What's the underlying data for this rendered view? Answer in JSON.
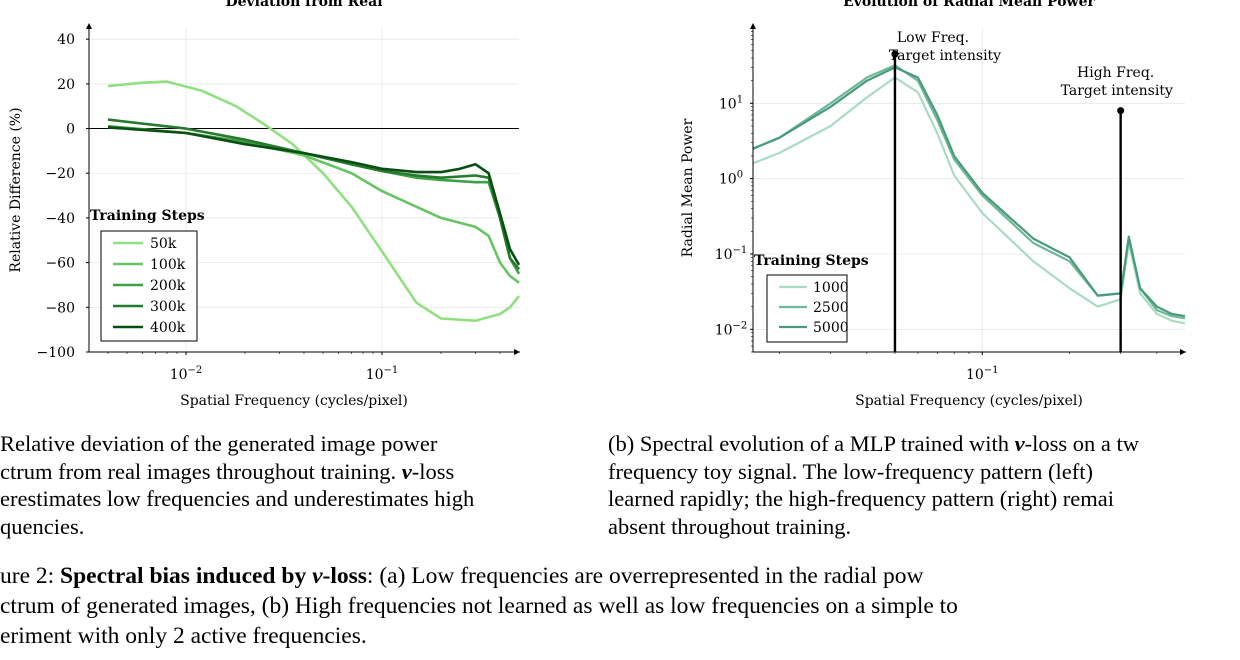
{
  "chart_data": [
    {
      "type": "line",
      "title": "Deviation from Real",
      "xlabel": "Spatial Frequency (cycles/pixel)",
      "ylabel": "Relative Difference (%)",
      "x_scale": "log",
      "xlim": [
        0.0032,
        0.5
      ],
      "ylim": [
        -100,
        45
      ],
      "x_ticks": [
        "10−2",
        "10−1"
      ],
      "y_ticks": [
        "40",
        "20",
        "0",
        "−20",
        "−40",
        "−60",
        "−80",
        "−100"
      ],
      "grid": true,
      "legend": {
        "title": "Training Steps",
        "placement": "lower-left"
      },
      "series": [
        {
          "name": "50k",
          "color": "#90e080",
          "x": [
            0.004,
            0.006,
            0.008,
            0.012,
            0.018,
            0.025,
            0.035,
            0.05,
            0.07,
            0.1,
            0.15,
            0.2,
            0.3,
            0.4,
            0.45,
            0.5
          ],
          "y": [
            19,
            20.5,
            21,
            17,
            10,
            2,
            -7,
            -20,
            -35,
            -55,
            -78,
            -85,
            -86,
            -83,
            -80,
            -75
          ]
        },
        {
          "name": "100k",
          "color": "#66c463",
          "x": [
            0.004,
            0.01,
            0.02,
            0.04,
            0.07,
            0.1,
            0.15,
            0.2,
            0.3,
            0.35,
            0.4,
            0.45,
            0.5
          ],
          "y": [
            1,
            -2,
            -6,
            -12,
            -20,
            -28,
            -35,
            -40,
            -44,
            -48,
            -60,
            -66,
            -69
          ]
        },
        {
          "name": "200k",
          "color": "#3fa046",
          "x": [
            0.004,
            0.01,
            0.02,
            0.04,
            0.07,
            0.1,
            0.15,
            0.2,
            0.3,
            0.35,
            0.4,
            0.45,
            0.5
          ],
          "y": [
            1,
            -2,
            -6,
            -11,
            -16,
            -19,
            -22,
            -23,
            -24,
            -24,
            -40,
            -58,
            -65
          ]
        },
        {
          "name": "300k",
          "color": "#267a2e",
          "x": [
            0.004,
            0.01,
            0.02,
            0.04,
            0.07,
            0.1,
            0.15,
            0.2,
            0.3,
            0.35,
            0.4,
            0.45,
            0.5
          ],
          "y": [
            4,
            0,
            -5,
            -11,
            -16,
            -19,
            -21,
            -22,
            -21,
            -22,
            -40,
            -58,
            -63
          ]
        },
        {
          "name": "400k",
          "color": "#0a4f12",
          "x": [
            0.004,
            0.01,
            0.02,
            0.04,
            0.07,
            0.1,
            0.15,
            0.2,
            0.25,
            0.3,
            0.35,
            0.4,
            0.45,
            0.5
          ],
          "y": [
            0.5,
            -2,
            -7,
            -11,
            -15,
            -18,
            -19.5,
            -19.5,
            -18,
            -16,
            -20,
            -38,
            -54,
            -61
          ]
        }
      ]
    },
    {
      "type": "line",
      "title": "Evolution of Radial Mean Power",
      "xlabel": "Spatial Frequency (cycles/pixel)",
      "ylabel": "Radial Mean Power",
      "x_scale": "log",
      "y_scale": "log",
      "xlim": [
        0.0162,
        0.5
      ],
      "ylim": [
        0.005,
        100
      ],
      "x_ticks": [
        "10−1"
      ],
      "y_ticks": [
        "10^1",
        "10^0",
        "10^−1",
        "10^−2"
      ],
      "grid": true,
      "legend": {
        "title": "Training Steps",
        "placement": "lower-left"
      },
      "annotations": [
        {
          "label_lines": [
            "Low Freq.",
            "Target intensity"
          ],
          "x": 0.05,
          "y": 45
        },
        {
          "label_lines": [
            "High Freq.",
            "Target intensity"
          ],
          "x": 0.3,
          "y": 8
        }
      ],
      "series": [
        {
          "name": "1000",
          "color": "#a8dcc2",
          "x": [
            0.0162,
            0.02,
            0.03,
            0.04,
            0.05,
            0.06,
            0.07,
            0.08,
            0.1,
            0.15,
            0.2,
            0.25,
            0.3,
            0.32,
            0.35,
            0.4,
            0.45,
            0.5
          ],
          "y": [
            1.6,
            2.2,
            5,
            12,
            22,
            14,
            4,
            1.1,
            0.35,
            0.08,
            0.035,
            0.02,
            0.025,
            0.14,
            0.03,
            0.016,
            0.013,
            0.012
          ]
        },
        {
          "name": "2500",
          "color": "#6db896",
          "x": [
            0.0162,
            0.02,
            0.03,
            0.04,
            0.05,
            0.06,
            0.07,
            0.08,
            0.1,
            0.15,
            0.2,
            0.25,
            0.3,
            0.32,
            0.35,
            0.4,
            0.45,
            0.5
          ],
          "y": [
            2.5,
            3.5,
            10,
            22,
            32,
            20,
            6,
            1.8,
            0.6,
            0.14,
            0.08,
            0.028,
            0.03,
            0.16,
            0.035,
            0.018,
            0.015,
            0.014
          ]
        },
        {
          "name": "5000",
          "color": "#4a9b7b",
          "x": [
            0.0162,
            0.02,
            0.03,
            0.04,
            0.05,
            0.06,
            0.07,
            0.08,
            0.1,
            0.15,
            0.2,
            0.25,
            0.3,
            0.32,
            0.35,
            0.4,
            0.45,
            0.5
          ],
          "y": [
            2.5,
            3.5,
            9,
            20,
            30,
            22,
            7,
            2,
            0.65,
            0.16,
            0.09,
            0.028,
            0.03,
            0.17,
            0.035,
            0.02,
            0.016,
            0.015
          ]
        }
      ]
    }
  ],
  "captions": {
    "a_lines": [
      "Relative deviation of the generated image power",
      "ctrum from real images throughout training. ",
      "erestimates low frequencies and underestimates high",
      "quencies."
    ],
    "a_vloss_tail": "-loss",
    "b_line1_pre": "(b) Spectral evolution of a MLP trained with ",
    "b_line1_post": "-loss on a tw",
    "b_lines": [
      "frequency toy signal.  The low-frequency pattern (left)",
      "learned rapidly; the high-frequency pattern (right) remai",
      "absent throughout training."
    ],
    "fig_line1_pre": "ure 2: ",
    "fig_line1_bold": "Spectral bias induced by ",
    "fig_line1_bold2": "-loss",
    "fig_line1_post": ": (a) Low frequencies are overrepresented in the radial pow",
    "fig_line2": "ctrum of generated images, (b) High frequencies not learned as well as low frequencies on a simple to",
    "fig_line3": "eriment with only 2 active frequencies.",
    "v_symbol": "v"
  }
}
